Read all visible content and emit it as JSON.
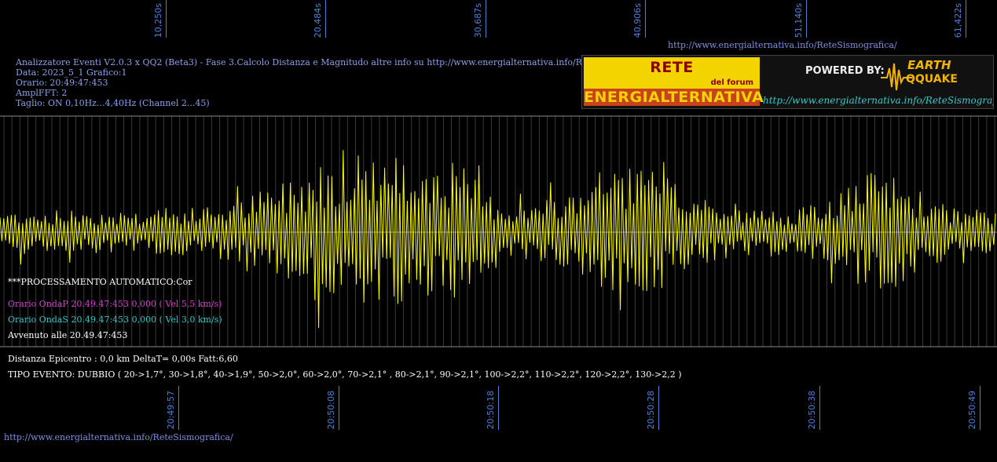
{
  "top_ticks": [
    "10,250s",
    "20,484s",
    "30,687s",
    "40,906s",
    "51,140s",
    "61,422s"
  ],
  "bottom_ticks": [
    "20:49:57",
    "20:50:08",
    "20:50:18",
    "20:50:28",
    "20:50:38",
    "20:50:49"
  ],
  "header": {
    "url_top": "http://www.energialternativa.info/ReteSismografica/",
    "line1": "Analizzatore Eventi V2.0.3 x QQ2 (Beta3) - Fase 3.Calcolo Distanza e Magnitudo altre info su http://www.energialternativa.info/ReteSism",
    "line2": "Data: 2023_5_1 Grafico:1",
    "line3": "Orario: 20:49:47:453",
    "line4": "AmplFFT: 2",
    "line5": "Taglio: ON 0,10Hz...4,40Hz       (Channel 2...45)"
  },
  "logo": {
    "title1": "RETE SISMOGRAFICA",
    "title2": "del forum",
    "title3": "ENERGIALTERNATIVA",
    "powered": "POWERED BY:",
    "brand1": "EARTH",
    "brand2": "QQUAKE",
    "url": "http://www.energialternativa.info/ReteSismografica"
  },
  "status": {
    "processing": "***PROCESSAMENTO AUTOMATICO:Cor",
    "onda_p": "Orario OndaP 20.49.47:453  0,000 ( Vel 5,5 km/s)",
    "onda_s": "Orario OndaS 20.49.47:453  0,000 ( Vel 3,0 km/s)",
    "avvenuto": "Avvenuto alle 20.49.47:453",
    "distanza": "Distanza Epicentro : 0,0 km DeltaT= 0,00s  Fatt:6,60",
    "tipo": "TIPO EVENTO: DUBBIO ( 20->1,7°, 30->1,8°, 40->1,9°, 50->2,0°, 60->2,0°, 70->2,1° , 80->2,1°, 90->2,1°, 100->2,2°, 110->2,2°, 120->2,2°, 130->2,2 )"
  },
  "footer_url": "http://www.energialternativa.info/ReteSismografica/",
  "colors": {
    "background": "#000000",
    "trace": "#ffff00",
    "grid": "#8a8a8a",
    "axis_label": "#4f7fd6",
    "onda_p": "#d040d0",
    "onda_s": "#30c8c8"
  }
}
